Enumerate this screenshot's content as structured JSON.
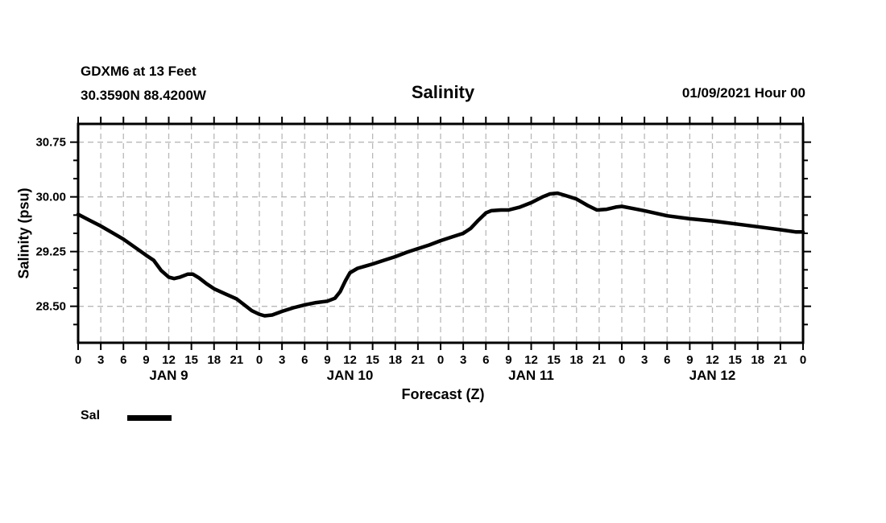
{
  "header": {
    "station_line1": "GDXM6 at 13 Feet",
    "station_line2": "30.3590N 88.4200W",
    "title": "Salinity",
    "datetime_label": "01/09/2021 Hour 00"
  },
  "chart_data": {
    "type": "line",
    "title": "Salinity",
    "xlabel": "Forecast (Z)",
    "ylabel": "Salinity (psu)",
    "ylim": [
      28.0,
      31.0
    ],
    "xlim_hours": [
      0,
      96
    ],
    "y_major_ticks": [
      28.5,
      29.25,
      30.0,
      30.75
    ],
    "y_minor_step": 0.25,
    "x_tick_step_hours": 3,
    "x_tick_label_mod": 24,
    "grid": true,
    "grid_color": "#b8b8b8",
    "axis_color": "#000000",
    "day_labels": [
      {
        "label": "JAN 9",
        "center_hour": 12
      },
      {
        "label": "JAN 10",
        "center_hour": 36
      },
      {
        "label": "JAN 11",
        "center_hour": 60
      },
      {
        "label": "JAN 12",
        "center_hour": 84
      }
    ],
    "legend": {
      "position": "bottom-left",
      "entries": [
        {
          "label": "Sal",
          "color": "#000000"
        }
      ]
    },
    "series": [
      {
        "name": "Sal",
        "color": "#000000",
        "points": [
          [
            0,
            29.76
          ],
          [
            1.5,
            29.68
          ],
          [
            3,
            29.6
          ],
          [
            4.5,
            29.51
          ],
          [
            6,
            29.42
          ],
          [
            7.5,
            29.31
          ],
          [
            9,
            29.2
          ],
          [
            10,
            29.13
          ],
          [
            11,
            28.99
          ],
          [
            12,
            28.9
          ],
          [
            12.7,
            28.88
          ],
          [
            13.5,
            28.9
          ],
          [
            14.5,
            28.94
          ],
          [
            15.2,
            28.94
          ],
          [
            16,
            28.89
          ],
          [
            17,
            28.81
          ],
          [
            18,
            28.74
          ],
          [
            19.5,
            28.67
          ],
          [
            21,
            28.6
          ],
          [
            22,
            28.52
          ],
          [
            23,
            28.44
          ],
          [
            24,
            28.39
          ],
          [
            24.7,
            28.37
          ],
          [
            25.7,
            28.38
          ],
          [
            27,
            28.43
          ],
          [
            28.5,
            28.48
          ],
          [
            30,
            28.52
          ],
          [
            31.5,
            28.55
          ],
          [
            33,
            28.57
          ],
          [
            34,
            28.61
          ],
          [
            34.7,
            28.7
          ],
          [
            35.4,
            28.85
          ],
          [
            36,
            28.96
          ],
          [
            37,
            29.02
          ],
          [
            38,
            29.05
          ],
          [
            39,
            29.08
          ],
          [
            40.5,
            29.13
          ],
          [
            42,
            29.18
          ],
          [
            43.5,
            29.24
          ],
          [
            45,
            29.29
          ],
          [
            46.5,
            29.34
          ],
          [
            48,
            29.4
          ],
          [
            49.5,
            29.45
          ],
          [
            51,
            29.5
          ],
          [
            52,
            29.57
          ],
          [
            53,
            29.68
          ],
          [
            54,
            29.78
          ],
          [
            54.7,
            29.81
          ],
          [
            56,
            29.82
          ],
          [
            57,
            29.82
          ],
          [
            58.5,
            29.86
          ],
          [
            60,
            29.92
          ],
          [
            61.5,
            30.0
          ],
          [
            62.5,
            30.04
          ],
          [
            63.5,
            30.05
          ],
          [
            64.5,
            30.02
          ],
          [
            66,
            29.97
          ],
          [
            67.5,
            29.88
          ],
          [
            68.7,
            29.82
          ],
          [
            70,
            29.83
          ],
          [
            71.2,
            29.86
          ],
          [
            72,
            29.87
          ],
          [
            73.5,
            29.84
          ],
          [
            75,
            29.81
          ],
          [
            78,
            29.74
          ],
          [
            81,
            29.7
          ],
          [
            84,
            29.67
          ],
          [
            87,
            29.63
          ],
          [
            90,
            29.59
          ],
          [
            93,
            29.55
          ],
          [
            95,
            29.52
          ],
          [
            96,
            29.52
          ]
        ]
      }
    ]
  }
}
